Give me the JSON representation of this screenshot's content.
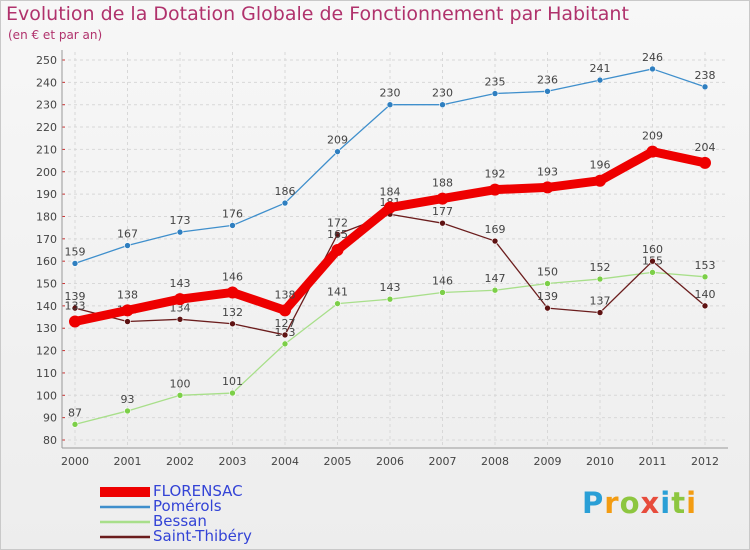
{
  "title": "Evolution de la Dotation Globale de Fonctionnement par Habitant",
  "subtitle": "(en € et par an)",
  "logo": {
    "text": "Proxiti",
    "letters": [
      {
        "ch": "P",
        "color": "#2a9fd6"
      },
      {
        "ch": "r",
        "color": "#f39c12"
      },
      {
        "ch": "o",
        "color": "#8dc63f"
      },
      {
        "ch": "x",
        "color": "#e74c3c"
      },
      {
        "ch": "i",
        "color": "#2a9fd6"
      },
      {
        "ch": "t",
        "color": "#8dc63f"
      },
      {
        "ch": "i",
        "color": "#f39c12"
      }
    ]
  },
  "chart_data": {
    "type": "line",
    "title": "Evolution de la Dotation Globale de Fonctionnement par Habitant",
    "subtitle": "(en € et par an)",
    "xlabel": "",
    "ylabel": "",
    "ylim": [
      80,
      250
    ],
    "ytick_step": 10,
    "grid": true,
    "legend_position": "bottom-left",
    "categories": [
      "2000",
      "2001",
      "2002",
      "2003",
      "2004",
      "2005",
      "2006",
      "2007",
      "2008",
      "2009",
      "2010",
      "2011",
      "2012"
    ],
    "series": [
      {
        "name": "Pomérols",
        "color": "#3f8fcc",
        "marker": "#2f7fc0",
        "values": [
          159,
          167,
          173,
          176,
          186,
          209,
          230,
          230,
          235,
          236,
          241,
          246,
          238
        ]
      },
      {
        "name": "Bessan",
        "color": "#a8df8a",
        "marker": "#7ccf48",
        "values": [
          87,
          93,
          100,
          101,
          123,
          141,
          143,
          146,
          147,
          150,
          152,
          155,
          153
        ]
      },
      {
        "name": "Saint-Thibéry",
        "color": "#6b1d1d",
        "marker": "#5e1212",
        "values": [
          139,
          133,
          134,
          132,
          127,
          172,
          181,
          177,
          169,
          139,
          137,
          160,
          140
        ]
      },
      {
        "name": "FLORENSAC",
        "color": "#ee0000",
        "marker": "#ee0000",
        "values": [
          133,
          138,
          143,
          146,
          138,
          165,
          184,
          188,
          192,
          193,
          196,
          209,
          204
        ]
      }
    ]
  }
}
